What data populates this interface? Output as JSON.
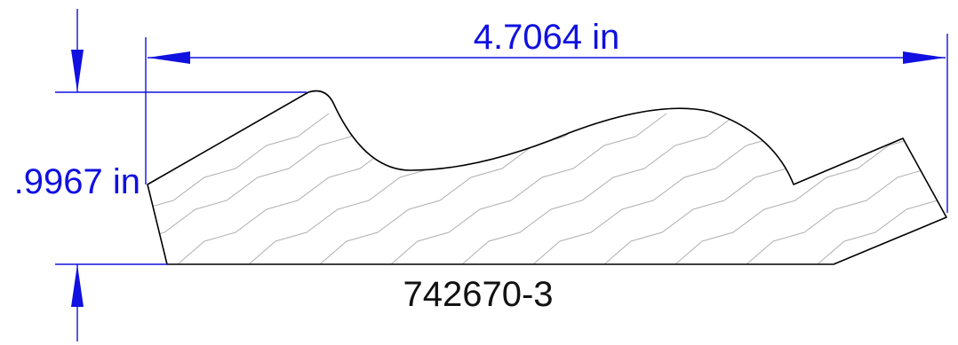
{
  "dimensions": {
    "width_label": "4.7064 in",
    "height_label": ".9967 in"
  },
  "part_number": "742670-3",
  "colors": {
    "dimension": "#1010e0",
    "outline": "#000000",
    "grain": "#b0b0b0"
  }
}
